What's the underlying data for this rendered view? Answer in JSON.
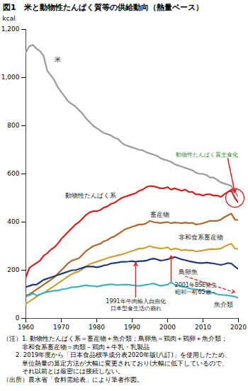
{
  "chart_data": {
    "type": "line",
    "title": "図1　米と動物性たんぱく質等の供給動向（熱量ベース）",
    "ylabel": "kcal",
    "x": [
      1960,
      1961,
      1962,
      1963,
      1964,
      1965,
      1966,
      1967,
      1968,
      1969,
      1970,
      1971,
      1972,
      1973,
      1974,
      1975,
      1976,
      1977,
      1978,
      1979,
      1980,
      1981,
      1982,
      1983,
      1984,
      1985,
      1986,
      1987,
      1988,
      1989,
      1990,
      1991,
      1992,
      1993,
      1994,
      1995,
      1996,
      1997,
      1998,
      1999,
      2000,
      2001,
      2002,
      2003,
      2004,
      2005,
      2006,
      2007,
      2008,
      2009,
      2010,
      2011,
      2012,
      2013,
      2014,
      2015,
      2016,
      2017,
      2018,
      2019,
      2020
    ],
    "series": [
      {
        "name": "米",
        "color": "#9a9a9a",
        "values": [
          1105,
          1130,
          1135,
          1120,
          1110,
          1090,
          1030,
          1010,
          990,
          960,
          940,
          920,
          900,
          890,
          880,
          865,
          850,
          830,
          815,
          800,
          790,
          780,
          770,
          765,
          760,
          750,
          745,
          730,
          720,
          715,
          710,
          705,
          700,
          698,
          690,
          685,
          680,
          675,
          665,
          660,
          655,
          650,
          640,
          635,
          630,
          625,
          620,
          615,
          605,
          600,
          600,
          595,
          585,
          585,
          575,
          565,
          560,
          555,
          550,
          525,
          505
        ]
      },
      {
        "name": "動物性たんぱく系",
        "color": "#d91e1e",
        "values": [
          170,
          210,
          220,
          230,
          240,
          260,
          270,
          285,
          295,
          310,
          330,
          345,
          360,
          375,
          390,
          400,
          415,
          430,
          440,
          445,
          445,
          450,
          460,
          465,
          475,
          480,
          490,
          500,
          505,
          510,
          515,
          520,
          530,
          535,
          545,
          550,
          548,
          545,
          540,
          540,
          545,
          535,
          540,
          535,
          530,
          535,
          525,
          525,
          515,
          515,
          510,
          515,
          515,
          510,
          510,
          505,
          515,
          525,
          530,
          500,
          480
        ]
      },
      {
        "name": "畜産物",
        "color": "#b0652a",
        "values": [
          90,
          100,
          110,
          120,
          130,
          140,
          150,
          160,
          170,
          185,
          200,
          215,
          230,
          240,
          245,
          250,
          265,
          280,
          290,
          300,
          305,
          310,
          320,
          325,
          335,
          340,
          350,
          360,
          370,
          375,
          380,
          385,
          390,
          390,
          395,
          405,
          400,
          398,
          396,
          398,
          400,
          395,
          398,
          397,
          395,
          398,
          395,
          397,
          390,
          392,
          395,
          400,
          405,
          405,
          405,
          410,
          420,
          428,
          435,
          410,
          408
        ]
      },
      {
        "name": "非和食系畜産物",
        "color": "#c9a033",
        "values": [
          60,
          70,
          80,
          90,
          100,
          105,
          115,
          125,
          135,
          145,
          155,
          165,
          175,
          185,
          190,
          195,
          205,
          215,
          225,
          230,
          235,
          240,
          245,
          250,
          255,
          258,
          262,
          265,
          270,
          275,
          280,
          285,
          290,
          290,
          295,
          300,
          295,
          293,
          290,
          292,
          295,
          285,
          290,
          288,
          282,
          285,
          282,
          283,
          278,
          280,
          282,
          285,
          288,
          287,
          288,
          290,
          298,
          305,
          310,
          290,
          288
        ]
      },
      {
        "name": "鳥卵魚",
        "color": "#1f3a7a",
        "values": [
          130,
          135,
          140,
          140,
          150,
          160,
          165,
          170,
          175,
          180,
          185,
          190,
          195,
          200,
          200,
          205,
          210,
          215,
          215,
          215,
          212,
          215,
          220,
          222,
          228,
          230,
          232,
          235,
          235,
          236,
          238,
          235,
          238,
          238,
          240,
          245,
          248,
          245,
          240,
          242,
          245,
          250,
          255,
          250,
          245,
          242,
          238,
          235,
          232,
          230,
          230,
          232,
          230,
          228,
          225,
          222,
          225,
          230,
          228,
          215,
          205
        ]
      },
      {
        "name": "魚介類",
        "color": "#3fb0c8",
        "values": [
          100,
          95,
          105,
          95,
          100,
          105,
          110,
          112,
          115,
          115,
          120,
          122,
          125,
          130,
          130,
          132,
          135,
          138,
          135,
          135,
          132,
          135,
          138,
          140,
          142,
          140,
          138,
          140,
          140,
          140,
          138,
          136,
          135,
          137,
          140,
          142,
          145,
          140,
          135,
          138,
          140,
          150,
          140,
          137,
          132,
          130,
          125,
          122,
          120,
          118,
          115,
          112,
          110,
          105,
          100,
          98,
          97,
          95,
          93,
          90,
          85
        ]
      }
    ],
    "xlim": [
      1960,
      2020
    ],
    "xticks": [
      1960,
      1970,
      1980,
      1990,
      2000,
      2010,
      2020
    ],
    "ylim": [
      0,
      1200
    ],
    "yticks": [
      0,
      200,
      400,
      600,
      800,
      {
        "value": 1000,
        "label": "1,000"
      },
      {
        "value": 1200,
        "label": "1,200"
      }
    ],
    "grid": false,
    "annotations": [
      {
        "text": "動物性たんぱく質主食化",
        "x": 2011,
        "y": 680,
        "color": "#2e8b3a"
      },
      {
        "text": "1991年牛肉輸入自由化\n日本型食生活の崩れ",
        "x": 1991,
        "y": 58,
        "color": "#222222"
      },
      {
        "text": "2001年BSE発生\n昭和一桁65歳～",
        "x": 2008,
        "y": 126,
        "color": "#222222"
      }
    ],
    "notes": [
      "（注）1. 動物性たんぱく系＝畜産物＋魚介類；鳥卵魚＝鶏肉＋鶏卵＋魚介類；",
      "　　　非和食系畜産物＝肉類－鶏肉＋牛乳・乳製品",
      "　　2. 2019年度から「日本食品標準成分表2020年版(八訂)」を使用したため、",
      "　　　単位熱量の算定方法が大幅に変更されており(大幅に低下しているので、",
      "　　　それ以前とは厳密には接続しない。",
      "（出所）農水省「食料需給表」により筆者作図。"
    ]
  }
}
